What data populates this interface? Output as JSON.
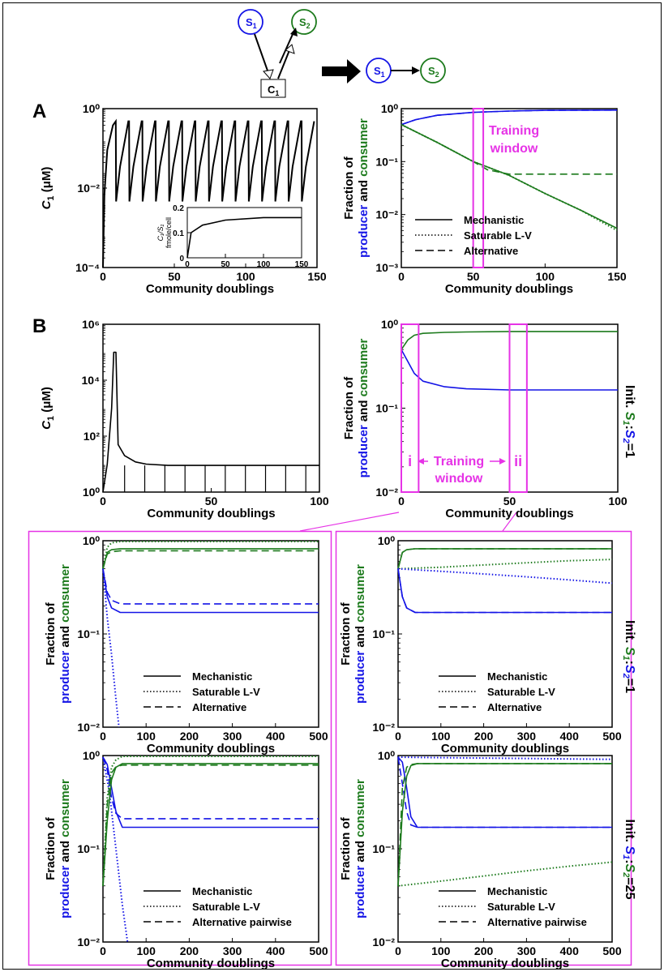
{
  "colors": {
    "producer": "#1414e6",
    "consumer": "#1c7a1c",
    "magenta": "#e633e6",
    "black": "#000000"
  },
  "schematic": {
    "s1_main": "S",
    "s1_sub": "1",
    "s2_main": "S",
    "s2_sub": "2",
    "c1_main": "C",
    "c1_sub": "1"
  },
  "panelA": {
    "letter": "A"
  },
  "panelB": {
    "letter": "B"
  },
  "axis": {
    "xlabel": "Community doublings",
    "c1_ylabel_main": "C",
    "c1_ylabel_sub": "1",
    "c1_ylabel_unit": "(μM)",
    "frac_line1": "Fraction of",
    "frac_producer": "producer",
    "frac_and": " and ",
    "frac_consumer": "consumer"
  },
  "inset": {
    "ylabel_top": "C₁/S₁",
    "ylabel_bottom": "fmole/cell"
  },
  "annotations": {
    "training_line1": "Training",
    "training_line2": "window",
    "roman_i": "i",
    "roman_ii": "ii"
  },
  "legend": {
    "mechanistic": "Mechanistic",
    "saturable": "Saturable L-V",
    "alternative": "Alternative",
    "alternative_pairwise": "Alternative pairwise"
  },
  "side_labels": {
    "ratio1": "Init. S₁:S₂=1",
    "ratio25": "Init. S₁:S₂=25"
  },
  "chart_data": [
    {
      "id": "A-left",
      "type": "line",
      "log_y": true,
      "xlim": [
        0,
        150
      ],
      "ylim": [
        0.0001,
        10
      ],
      "xticks": [
        "0",
        "50",
        "100",
        "150"
      ],
      "yticks": [
        "10⁻⁴",
        "10⁻²",
        "10⁰"
      ],
      "xlabel": "Community doublings",
      "ylabel": "C1 (μM)",
      "series": [
        {
          "color": "black",
          "style": "solid",
          "description": "sawtooth ~0.01 to ~4 μM, period ~10 doublings"
        }
      ]
    },
    {
      "id": "A-inset",
      "type": "line",
      "xlim": [
        0,
        150
      ],
      "ylim": [
        0,
        0.2
      ],
      "xticks": [
        "0",
        "50",
        "100",
        "150"
      ],
      "yticks": [
        "0",
        "0.1",
        "0.2"
      ],
      "ylabel": "C1/S1 fmole/cell",
      "series": [
        {
          "color": "black",
          "style": "solid",
          "x": [
            0,
            5,
            20,
            50,
            100,
            150
          ],
          "y": [
            0,
            0.1,
            0.13,
            0.15,
            0.16,
            0.16
          ]
        }
      ]
    },
    {
      "id": "A-right",
      "type": "line",
      "log_y": true,
      "xlim": [
        0,
        150
      ],
      "ylim": [
        0.001,
        1
      ],
      "xticks": [
        "0",
        "50",
        "100",
        "150"
      ],
      "yticks": [
        "10⁻³",
        "10⁻²",
        "10⁻¹",
        "10⁰"
      ],
      "training_window": [
        50,
        57
      ],
      "series": [
        {
          "color": "producer",
          "style": "solid",
          "x": [
            0,
            10,
            25,
            50,
            75,
            100,
            150
          ],
          "y": [
            0.5,
            0.62,
            0.75,
            0.85,
            0.9,
            0.93,
            0.94
          ]
        },
        {
          "color": "producer",
          "style": "dash",
          "x": [
            0,
            10,
            25,
            50,
            75,
            100,
            150
          ],
          "y": [
            0.5,
            0.62,
            0.75,
            0.85,
            0.9,
            0.93,
            0.94
          ]
        },
        {
          "color": "consumer",
          "style": "solid",
          "x": [
            0,
            25,
            50,
            75,
            100,
            125,
            150
          ],
          "y": [
            0.5,
            0.23,
            0.1,
            0.055,
            0.025,
            0.012,
            0.0055
          ]
        },
        {
          "color": "consumer",
          "style": "dot",
          "x": [
            0,
            25,
            50,
            75,
            100,
            125,
            150
          ],
          "y": [
            0.5,
            0.23,
            0.1,
            0.055,
            0.025,
            0.012,
            0.005
          ]
        },
        {
          "color": "consumer",
          "style": "dash",
          "x": [
            0,
            25,
            50,
            60,
            75,
            100,
            150
          ],
          "y": [
            0.5,
            0.23,
            0.1,
            0.07,
            0.058,
            0.058,
            0.058
          ]
        }
      ]
    },
    {
      "id": "B-left",
      "type": "line",
      "log_y": true,
      "xlim": [
        0,
        100
      ],
      "ylim": [
        1,
        1000000
      ],
      "xticks": [
        "0",
        "50",
        "100"
      ],
      "yticks": [
        "10⁰",
        "10²",
        "10⁴",
        "10⁶"
      ],
      "series": [
        {
          "color": "black",
          "style": "solid",
          "x": [
            0,
            2,
            4,
            5,
            6,
            7,
            10,
            15,
            20,
            30,
            40,
            100
          ],
          "y": [
            1,
            10,
            1000,
            100000,
            100000,
            50,
            20,
            12,
            10,
            9,
            9,
            9
          ]
        }
      ]
    },
    {
      "id": "B-right",
      "type": "line",
      "log_y": true,
      "xlim": [
        0,
        100
      ],
      "ylim": [
        0.01,
        1
      ],
      "xticks": [
        "0",
        "50",
        "100"
      ],
      "yticks": [
        "10⁻²",
        "10⁻¹",
        "10⁰"
      ],
      "training_windows": [
        [
          0,
          8
        ],
        [
          50,
          58
        ]
      ],
      "series": [
        {
          "color": "consumer",
          "style": "solid",
          "x": [
            0,
            3,
            6,
            10,
            20,
            30,
            50,
            100
          ],
          "y": [
            0.5,
            0.65,
            0.74,
            0.78,
            0.8,
            0.81,
            0.82,
            0.82
          ]
        },
        {
          "color": "producer",
          "style": "solid",
          "x": [
            0,
            3,
            6,
            10,
            20,
            30,
            50,
            100
          ],
          "y": [
            0.5,
            0.36,
            0.26,
            0.21,
            0.18,
            0.17,
            0.165,
            0.165
          ]
        }
      ]
    },
    {
      "id": "C1-ratio1-i",
      "type": "line",
      "log_y": true,
      "xlim": [
        0,
        500
      ],
      "ylim": [
        0.01,
        1
      ],
      "xticks": [
        "0",
        "100",
        "200",
        "300",
        "400",
        "500"
      ],
      "yticks": [
        "10⁻²",
        "10⁻¹",
        "10⁰"
      ],
      "series": [
        {
          "color": "consumer",
          "style": "solid",
          "x": [
            0,
            10,
            20,
            40,
            500
          ],
          "y": [
            0.5,
            0.75,
            0.8,
            0.82,
            0.82
          ]
        },
        {
          "color": "consumer",
          "style": "dot",
          "x": [
            0,
            10,
            20,
            40,
            500
          ],
          "y": [
            0.5,
            0.85,
            0.95,
            0.98,
            0.98
          ]
        },
        {
          "color": "consumer",
          "style": "dash",
          "x": [
            0,
            10,
            20,
            40,
            500
          ],
          "y": [
            0.5,
            0.72,
            0.76,
            0.78,
            0.78
          ]
        },
        {
          "color": "producer",
          "style": "solid",
          "x": [
            0,
            10,
            20,
            40,
            500
          ],
          "y": [
            0.5,
            0.25,
            0.19,
            0.17,
            0.17
          ]
        },
        {
          "color": "producer",
          "style": "dot",
          "x": [
            0,
            10,
            20,
            30,
            37
          ],
          "y": [
            0.5,
            0.15,
            0.06,
            0.02,
            0.01
          ]
        },
        {
          "color": "producer",
          "style": "dash",
          "x": [
            0,
            10,
            20,
            40,
            500
          ],
          "y": [
            0.5,
            0.28,
            0.23,
            0.21,
            0.21
          ]
        }
      ]
    },
    {
      "id": "C2-ratio1-ii",
      "type": "line",
      "log_y": true,
      "xlim": [
        0,
        500
      ],
      "ylim": [
        0.01,
        1
      ],
      "xticks": [
        "0",
        "100",
        "200",
        "300",
        "400",
        "500"
      ],
      "yticks": [
        "10⁻²",
        "10⁻¹",
        "10⁰"
      ],
      "series": [
        {
          "color": "consumer",
          "style": "solid",
          "x": [
            0,
            10,
            20,
            40,
            500
          ],
          "y": [
            0.5,
            0.75,
            0.8,
            0.82,
            0.82
          ]
        },
        {
          "color": "consumer",
          "style": "dash",
          "x": [
            0,
            10,
            20,
            40,
            500
          ],
          "y": [
            0.5,
            0.75,
            0.8,
            0.82,
            0.82
          ]
        },
        {
          "color": "consumer",
          "style": "dot",
          "x": [
            0,
            100,
            200,
            300,
            400,
            500
          ],
          "y": [
            0.5,
            0.52,
            0.55,
            0.58,
            0.61,
            0.63
          ]
        },
        {
          "color": "producer",
          "style": "solid",
          "x": [
            0,
            10,
            20,
            40,
            500
          ],
          "y": [
            0.5,
            0.25,
            0.19,
            0.17,
            0.17
          ]
        },
        {
          "color": "producer",
          "style": "dash",
          "x": [
            0,
            10,
            20,
            40,
            500
          ],
          "y": [
            0.5,
            0.25,
            0.19,
            0.17,
            0.17
          ]
        },
        {
          "color": "producer",
          "style": "dot",
          "x": [
            0,
            100,
            200,
            300,
            400,
            500
          ],
          "y": [
            0.5,
            0.47,
            0.44,
            0.41,
            0.38,
            0.35
          ]
        }
      ]
    },
    {
      "id": "C3-ratio25-i",
      "type": "line",
      "log_y": true,
      "xlim": [
        0,
        500
      ],
      "ylim": [
        0.01,
        1
      ],
      "xticks": [
        "0",
        "100",
        "200",
        "300",
        "400",
        "500"
      ],
      "yticks": [
        "10⁻²",
        "10⁻¹",
        "10⁰"
      ],
      "series": [
        {
          "color": "producer",
          "style": "solid",
          "x": [
            0,
            10,
            20,
            30,
            45,
            500
          ],
          "y": [
            0.96,
            0.8,
            0.45,
            0.25,
            0.17,
            0.17
          ]
        },
        {
          "color": "producer",
          "style": "dash",
          "x": [
            0,
            10,
            20,
            30,
            45,
            500
          ],
          "y": [
            0.96,
            0.7,
            0.35,
            0.24,
            0.21,
            0.21
          ]
        },
        {
          "color": "producer",
          "style": "dot",
          "x": [
            0,
            15,
            30,
            45,
            57
          ],
          "y": [
            0.96,
            0.4,
            0.1,
            0.025,
            0.01
          ]
        },
        {
          "color": "consumer",
          "style": "solid",
          "x": [
            0,
            10,
            20,
            30,
            45,
            500
          ],
          "y": [
            0.04,
            0.2,
            0.55,
            0.75,
            0.82,
            0.82
          ]
        },
        {
          "color": "consumer",
          "style": "dash",
          "x": [
            0,
            10,
            20,
            30,
            45,
            500
          ],
          "y": [
            0.04,
            0.3,
            0.65,
            0.76,
            0.79,
            0.79
          ]
        },
        {
          "color": "consumer",
          "style": "dot",
          "x": [
            0,
            10,
            20,
            30,
            45,
            500
          ],
          "y": [
            0.04,
            0.35,
            0.75,
            0.9,
            0.98,
            0.98
          ]
        }
      ]
    },
    {
      "id": "C4-ratio25-ii",
      "type": "line",
      "log_y": true,
      "xlim": [
        0,
        500
      ],
      "ylim": [
        0.01,
        1
      ],
      "xticks": [
        "0",
        "100",
        "200",
        "300",
        "400",
        "500"
      ],
      "yticks": [
        "10⁻²",
        "10⁻¹",
        "10⁰"
      ],
      "series": [
        {
          "color": "producer",
          "style": "solid",
          "x": [
            0,
            10,
            20,
            30,
            45,
            500
          ],
          "y": [
            0.96,
            0.85,
            0.45,
            0.22,
            0.17,
            0.17
          ]
        },
        {
          "color": "producer",
          "style": "dash",
          "x": [
            0,
            10,
            20,
            30,
            45,
            500
          ],
          "y": [
            0.96,
            0.5,
            0.25,
            0.18,
            0.17,
            0.17
          ]
        },
        {
          "color": "producer",
          "style": "dot",
          "x": [
            0,
            100,
            200,
            300,
            400,
            500
          ],
          "y": [
            0.96,
            0.95,
            0.94,
            0.93,
            0.92,
            0.91
          ]
        },
        {
          "color": "consumer",
          "style": "solid",
          "x": [
            0,
            10,
            20,
            30,
            45,
            500
          ],
          "y": [
            0.04,
            0.25,
            0.6,
            0.78,
            0.82,
            0.82
          ]
        },
        {
          "color": "consumer",
          "style": "dash",
          "x": [
            0,
            10,
            20,
            30,
            45,
            500
          ],
          "y": [
            0.04,
            0.45,
            0.75,
            0.8,
            0.82,
            0.82
          ]
        },
        {
          "color": "consumer",
          "style": "dot",
          "x": [
            0,
            100,
            200,
            300,
            400,
            500
          ],
          "y": [
            0.04,
            0.045,
            0.051,
            0.058,
            0.065,
            0.072
          ]
        }
      ]
    }
  ]
}
